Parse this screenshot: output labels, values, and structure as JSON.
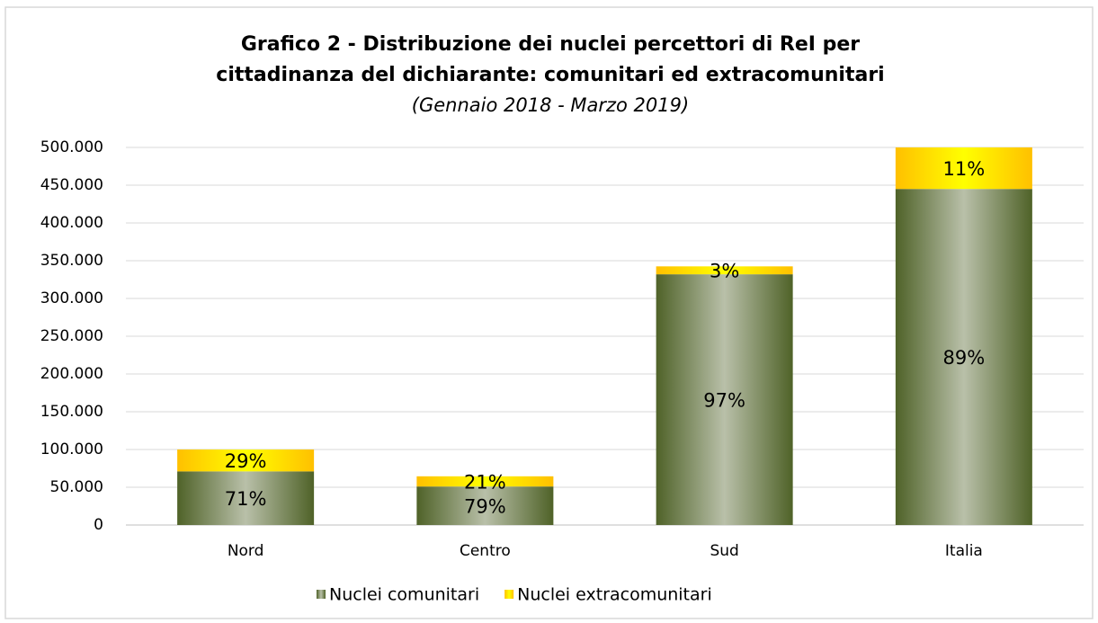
{
  "chart_data": {
    "type": "stacked_bar",
    "title": "Grafico 2 - Distribuzione dei nuclei percettori di ReI per",
    "title_line2": "cittadinanza del dichiarante: comunitari ed extracomunitari",
    "subtitle": "(Gennaio 2018 - Marzo 2019)",
    "categories": [
      "Nord",
      "Centro",
      "Sud",
      "Italia"
    ],
    "series": [
      {
        "name": "Nuclei comunitari",
        "color": "#4f6228",
        "values": [
          71000,
          51000,
          332000,
          445000
        ],
        "value_labels": [
          "71%",
          "79%",
          "97%",
          "89%"
        ]
      },
      {
        "name": "Nuclei extracomunitari",
        "color": "#ffc000",
        "values": [
          29000,
          13500,
          10500,
          55000
        ],
        "value_labels": [
          "29%",
          "21%",
          "3%",
          "11%"
        ]
      }
    ],
    "ylim": [
      0,
      500000
    ],
    "yticks": [
      0,
      {
        "value": 50000,
        "label": "50.000"
      },
      {
        "value": 100000,
        "label": "100.000"
      },
      {
        "value": 150000,
        "label": "150.000"
      },
      {
        "value": 200000,
        "label": "200.000"
      },
      {
        "value": 250000,
        "label": "250.000"
      },
      {
        "value": 300000,
        "label": "300.000"
      },
      {
        "value": 350000,
        "label": "350.000"
      },
      {
        "value": 400000,
        "label": "400.000"
      },
      {
        "value": 450000,
        "label": "450.000"
      },
      {
        "value": 500000,
        "label": "500.000"
      }
    ],
    "grid": true,
    "legend": "bottom"
  }
}
